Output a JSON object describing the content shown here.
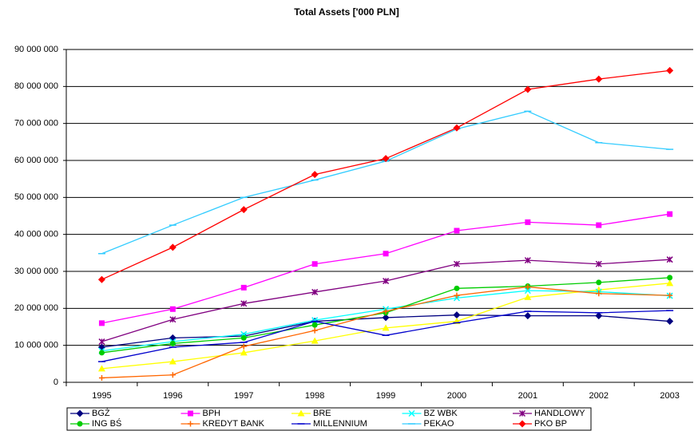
{
  "chart_data": {
    "type": "line",
    "title": "Total Assets ['000 PLN]",
    "categories": [
      "1995",
      "1996",
      "1997",
      "1998",
      "1999",
      "2000",
      "2001",
      "2002",
      "2003"
    ],
    "ylim": [
      0,
      90000000
    ],
    "yticks": [
      0,
      {
        "value": 10000000,
        "label": "10 000 000"
      },
      {
        "value": 20000000,
        "label": "20 000 000"
      },
      {
        "value": 30000000,
        "label": "30 000 000"
      },
      {
        "value": 40000000,
        "label": "40 000 000"
      },
      {
        "value": 50000000,
        "label": "50 000 000"
      },
      {
        "value": 60000000,
        "label": "60 000 000"
      },
      {
        "value": 70000000,
        "label": "70 000 000"
      },
      {
        "value": 80000000,
        "label": "80 000 000"
      },
      {
        "value": 90000000,
        "label": "90 000 000"
      }
    ],
    "grid": true,
    "legend": "bottom",
    "series": [
      {
        "name": "BGŻ",
        "color": "#000080",
        "marker": "diamond",
        "values": [
          9500000,
          12000000,
          12500000,
          16500000,
          17500000,
          18200000,
          18000000,
          18000000,
          16500000
        ]
      },
      {
        "name": "BPH",
        "color": "#ff00ff",
        "marker": "square",
        "values": [
          16000000,
          19800000,
          25600000,
          32000000,
          34800000,
          41000000,
          43300000,
          42500000,
          45500000
        ]
      },
      {
        "name": "BRE",
        "color": "#ffff00",
        "marker": "triangle",
        "values": [
          3700000,
          5600000,
          8000000,
          11200000,
          14700000,
          16500000,
          23000000,
          25000000,
          26800000
        ]
      },
      {
        "name": "BZ WBK",
        "color": "#00ffff",
        "marker": "x",
        "values": [
          8500000,
          11000000,
          13000000,
          16800000,
          19800000,
          22800000,
          24800000,
          24500000,
          23400000
        ]
      },
      {
        "name": "HANDLOWY",
        "color": "#800080",
        "marker": "star",
        "values": [
          11000000,
          17000000,
          21300000,
          24400000,
          27400000,
          32000000,
          33000000,
          32000000,
          33200000
        ]
      },
      {
        "name": "ING BŚ",
        "color": "#00cc00",
        "marker": "circle",
        "values": [
          8000000,
          10500000,
          12000000,
          15500000,
          18800000,
          25400000,
          26000000,
          27000000,
          28300000
        ]
      },
      {
        "name": "KREDYT BANK",
        "color": "#ff6600",
        "marker": "plus",
        "values": [
          1200000,
          2000000,
          9700000,
          14000000,
          19200000,
          23500000,
          25800000,
          24000000,
          23500000
        ]
      },
      {
        "name": "MILLENNIUM",
        "color": "#0000cc",
        "marker": "dash",
        "values": [
          5600000,
          9500000,
          10800000,
          16500000,
          12700000,
          16100000,
          19200000,
          18800000,
          19400000
        ]
      },
      {
        "name": "PEKAO",
        "color": "#33ccff",
        "marker": "dash",
        "values": [
          34800000,
          42500000,
          50000000,
          54700000,
          59800000,
          68500000,
          73300000,
          64800000,
          63000000
        ]
      },
      {
        "name": "PKO BP",
        "color": "#ff0000",
        "marker": "diamond",
        "values": [
          27800000,
          36500000,
          46700000,
          56200000,
          60500000,
          68800000,
          79200000,
          82000000,
          84300000
        ]
      }
    ]
  }
}
